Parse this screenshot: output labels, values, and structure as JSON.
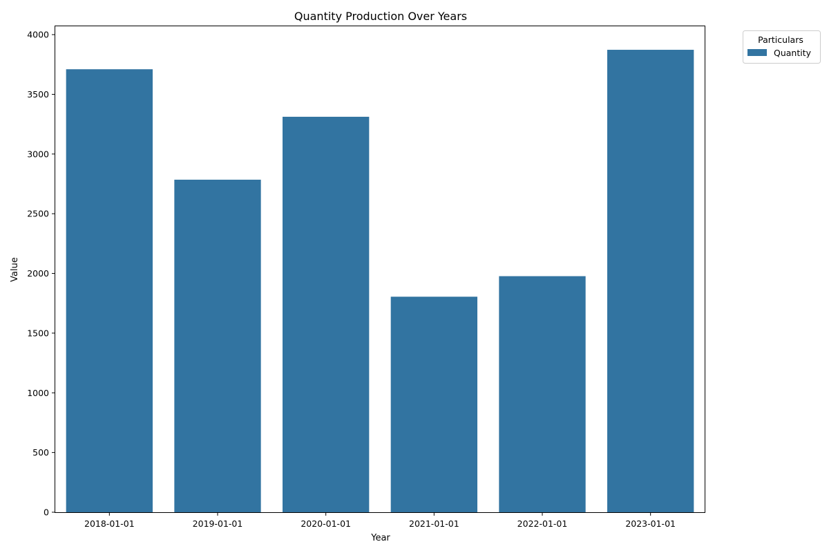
{
  "chart_data": {
    "type": "bar",
    "title": "Quantity Production Over Years",
    "xlabel": "Year",
    "ylabel": "Value",
    "categories": [
      "2018-01-01",
      "2019-01-01",
      "2020-01-01",
      "2021-01-01",
      "2022-01-01",
      "2023-01-01"
    ],
    "series": [
      {
        "name": "Quantity",
        "values": [
          3710,
          2785,
          3312,
          1805,
          1977,
          3873
        ],
        "color": "#3274a1"
      }
    ],
    "ylim": [
      0,
      4070
    ],
    "yticks": [
      0,
      500,
      1000,
      1500,
      2000,
      2500,
      3000,
      3500,
      4000
    ],
    "grid": false,
    "legend": {
      "title": "Particulars",
      "placement": "outside-top-right"
    }
  }
}
